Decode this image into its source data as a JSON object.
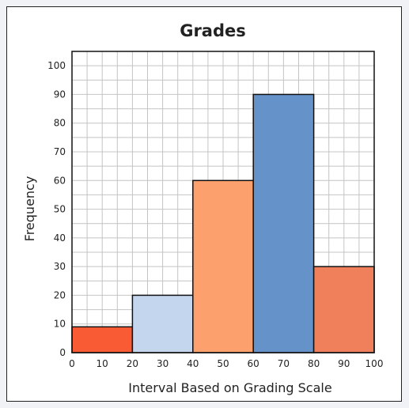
{
  "chart_data": {
    "type": "bar",
    "title": "Grades",
    "xlabel": "Interval Based on Grading Scale",
    "ylabel": "Frequency",
    "xlim": [
      0,
      100
    ],
    "ylim": [
      0,
      105
    ],
    "x_ticks": [
      0,
      10,
      20,
      30,
      40,
      50,
      60,
      70,
      80,
      90,
      100
    ],
    "y_ticks": [
      0,
      10,
      20,
      30,
      40,
      50,
      60,
      70,
      80,
      90,
      100
    ],
    "grid": true,
    "bins": [
      {
        "start": 0,
        "end": 20,
        "value": 9,
        "color": "#f95b35"
      },
      {
        "start": 20,
        "end": 40,
        "value": 20,
        "color": "#c3d6ee"
      },
      {
        "start": 40,
        "end": 60,
        "value": 60,
        "color": "#fca06d"
      },
      {
        "start": 60,
        "end": 80,
        "value": 90,
        "color": "#6592c9"
      },
      {
        "start": 80,
        "end": 100,
        "value": 30,
        "color": "#f0805b"
      }
    ]
  },
  "colors": {
    "grid": "#c4c4c4",
    "axis": "#111111",
    "bar_border": "#111111"
  }
}
